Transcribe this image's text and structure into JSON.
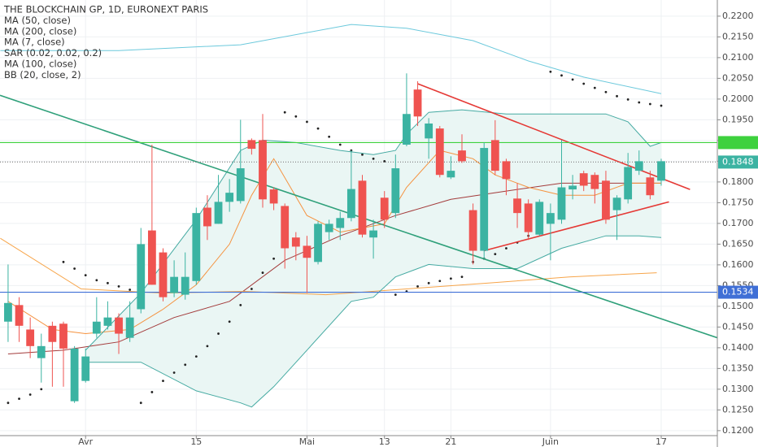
{
  "chart_data": {
    "type": "candlestick",
    "title": "THE BLOCKCHAIN GP, 1D, EURONEXT PARIS",
    "categories": [
      null,
      null,
      null,
      null,
      null,
      null,
      null,
      "Avr",
      null,
      null,
      null,
      null,
      null,
      null,
      null,
      null,
      null,
      "15",
      null,
      null,
      null,
      null,
      null,
      null,
      null,
      null,
      null,
      "Mai",
      null,
      null,
      null,
      null,
      null,
      null,
      "13",
      null,
      null,
      null,
      null,
      null,
      "21",
      null,
      null,
      null,
      null,
      null,
      null,
      null,
      null,
      "Juin",
      null,
      null,
      null,
      null,
      null,
      null,
      null,
      null,
      null,
      "17"
    ],
    "open": [
      0.1463,
      0.1503,
      0.1444,
      0.1375,
      0.1453,
      0.1458,
      0.1271,
      0.132,
      0.1434,
      0.1453,
      0.1473,
      0.1424,
      0.1493,
      0.1683,
      0.163,
      0.1532,
      0.1528,
      0.1561,
      0.1738,
      0.1699,
      0.1752,
      0.1754,
      0.1901,
      0.1901,
      0.1782,
      0.1742,
      0.1666,
      0.1646,
      0.1607,
      0.1679,
      0.1689,
      0.1713,
      0.1803,
      0.1666,
      0.1762,
      0.1725,
      0.189,
      0.2023,
      0.1905,
      0.1929,
      0.1811,
      0.1876,
      0.1732,
      0.1634,
      0.1901,
      0.185,
      0.176,
      0.1748,
      0.1673,
      0.1699,
      0.1709,
      0.1782,
      0.1821,
      0.1817,
      0.1803,
      0.1732,
      0.1758,
      0.1827,
      0.1811,
      0.1803
    ],
    "high": [
      0.1601,
      0.1522,
      0.1473,
      0.1434,
      0.1463,
      0.1463,
      0.1404,
      0.1398,
      0.1522,
      0.1512,
      0.1483,
      0.1512,
      0.1689,
      0.189,
      0.164,
      0.1611,
      0.163,
      0.1738,
      0.1768,
      0.1817,
      0.1807,
      0.195,
      0.1905,
      0.1964,
      0.1787,
      0.1748,
      0.1679,
      0.167,
      0.1705,
      0.1709,
      0.1728,
      0.1876,
      0.1817,
      0.1709,
      0.1778,
      0.1866,
      0.2062,
      0.2043,
      0.1954,
      0.1935,
      0.1862,
      0.1915,
      0.1748,
      0.1895,
      0.1949,
      0.1856,
      0.1797,
      0.1758,
      0.1758,
      0.1748,
      0.1901,
      0.1817,
      0.1827,
      0.1823,
      0.1827,
      0.1768,
      0.187,
      0.1876,
      0.1827,
      0.1856
    ],
    "low": [
      0.1414,
      0.1414,
      0.1375,
      0.1316,
      0.1306,
      0.1306,
      0.1267,
      0.1316,
      0.1424,
      0.1444,
      0.1385,
      0.1414,
      0.1483,
      0.1552,
      0.1512,
      0.1522,
      0.1516,
      0.1552,
      0.166,
      0.1699,
      0.1728,
      0.1748,
      0.1866,
      0.1738,
      0.1732,
      0.1591,
      0.1611,
      0.1532,
      0.1601,
      0.166,
      0.166,
      0.1705,
      0.1666,
      0.1615,
      0.1689,
      0.1713,
      0.1886,
      0.1935,
      0.1856,
      0.1811,
      0.1807,
      0.1846,
      0.1601,
      0.1615,
      0.1817,
      0.1768,
      0.1689,
      0.166,
      0.167,
      0.1611,
      0.1699,
      0.1758,
      0.1778,
      0.1748,
      0.1699,
      0.166,
      0.1748,
      0.1817,
      0.1758,
      0.1791
    ],
    "close": [
      0.1508,
      0.1453,
      0.1404,
      0.1404,
      0.1414,
      0.1398,
      0.1398,
      0.1379,
      0.1463,
      0.1473,
      0.1434,
      0.1473,
      0.165,
      0.1552,
      0.1522,
      0.1571,
      0.1571,
      0.1725,
      0.1693,
      0.1752,
      0.1774,
      0.1833,
      0.188,
      0.1758,
      0.1748,
      0.164,
      0.1644,
      0.1617,
      0.1699,
      0.1699,
      0.1713,
      0.1783,
      0.1673,
      0.1683,
      0.1709,
      0.1833,
      0.1964,
      0.1958,
      0.1941,
      0.1817,
      0.1827,
      0.185,
      0.1634,
      0.1882,
      0.1827,
      0.1807,
      0.1725,
      0.1679,
      0.1752,
      0.1725,
      0.1787,
      0.1791,
      0.1791,
      0.1783,
      0.1709,
      0.1762,
      0.1836,
      0.185,
      0.1768,
      0.185
    ],
    "up_color": "#3bb3a2",
    "down_color": "#ef5350",
    "xlim": [
      -0.73,
      64.07
    ],
    "ylim": [
      0.1188,
      0.2239
    ],
    "yticks": [
      {
        "value": 0.12,
        "label": "0.1200"
      },
      {
        "value": 0.125,
        "label": "0.1250"
      },
      {
        "value": 0.13,
        "label": "0.1300"
      },
      {
        "value": 0.135,
        "label": "0.1350"
      },
      {
        "value": 0.14,
        "label": "0.1400"
      },
      {
        "value": 0.145,
        "label": "0.1450"
      },
      {
        "value": 0.15,
        "label": "0.1500"
      },
      {
        "value": 0.155,
        "label": "0.1550"
      },
      {
        "value": 0.16,
        "label": "0.1600"
      },
      {
        "value": 0.165,
        "label": "0.1650"
      },
      {
        "value": 0.17,
        "label": "0.1700"
      },
      {
        "value": 0.175,
        "label": "0.1750"
      },
      {
        "value": 0.18,
        "label": "0.1800"
      },
      {
        "value": 0.185,
        "label": "0.1850"
      },
      {
        "value": 0.19,
        "label": "0.1900"
      },
      {
        "value": 0.195,
        "label": "0.1950"
      },
      {
        "value": 0.2,
        "label": "0.2000"
      },
      {
        "value": 0.205,
        "label": "0.2050"
      },
      {
        "value": 0.21,
        "label": "0.2100"
      },
      {
        "value": 0.215,
        "label": "0.2150"
      },
      {
        "value": 0.22,
        "label": "0.2200"
      }
    ],
    "grid": true,
    "indicators": [
      {
        "name": "MA (50, close)",
        "color": "#a33b3b",
        "x": [
          0,
          5,
          10,
          15,
          20,
          25,
          30,
          35,
          40,
          45,
          50,
          55,
          59
        ],
        "values": [
          0.1385,
          0.1394,
          0.1414,
          0.1473,
          0.1512,
          0.1611,
          0.167,
          0.1719,
          0.1758,
          0.1778,
          0.1797,
          0.1797,
          0.1797
        ]
      },
      {
        "name": "MA (200, close)",
        "color": "#6cc9dc",
        "x": [
          -0.7,
          10,
          21,
          31,
          36,
          42,
          47,
          52,
          59
        ],
        "values": [
          0.2117,
          0.2117,
          0.2131,
          0.218,
          0.2171,
          0.2141,
          0.2092,
          0.2053,
          0.2013
        ]
      },
      {
        "name": "MA (7, close)",
        "color": "#f5923e",
        "x": [
          0,
          4,
          7,
          11,
          14,
          17,
          20,
          22,
          24,
          27,
          30,
          34,
          36,
          39,
          42,
          44,
          47,
          50,
          53,
          56,
          59
        ],
        "values": [
          0.1512,
          0.1444,
          0.1434,
          0.1444,
          0.1493,
          0.1552,
          0.165,
          0.1768,
          0.1856,
          0.1719,
          0.1679,
          0.1699,
          0.1787,
          0.1876,
          0.1856,
          0.1817,
          0.1787,
          0.1768,
          0.1768,
          0.1797,
          0.1797
        ]
      },
      {
        "name": "SAR (0.02, 0.02, 0.2)",
        "color": "#222222",
        "values": [
          0.1267,
          0.1277,
          0.1287,
          0.13,
          null,
          0.1607,
          0.1591,
          0.1575,
          0.1563,
          0.1556,
          0.1548,
          0.154,
          0.1267,
          0.1293,
          0.132,
          0.134,
          0.1359,
          0.1379,
          0.1404,
          0.1434,
          0.1463,
          0.1503,
          0.1542,
          0.1581,
          0.1615,
          0.1968,
          0.1958,
          0.1945,
          0.1929,
          0.1909,
          0.189,
          0.1876,
          0.1866,
          0.1856,
          0.185,
          0.1528,
          0.1536,
          0.1548,
          0.1556,
          0.1561,
          0.1567,
          0.1571,
          0.1607,
          0.1615,
          0.1626,
          0.164,
          0.1654,
          0.167,
          0.1685,
          0.2066,
          0.2057,
          0.2047,
          0.2037,
          0.2027,
          0.2017,
          0.2007,
          0.1999,
          0.1992,
          0.1988,
          0.1984
        ]
      },
      {
        "name": "MA (100, close)",
        "color": "#f7a54a",
        "x": [
          -0.7,
          6.6,
          14,
          21.3,
          28.7,
          36,
          43.4,
          50.7,
          58.6
        ],
        "values": [
          0.1664,
          0.1542,
          0.1532,
          0.1536,
          0.1528,
          0.1542,
          0.1556,
          0.1571,
          0.1581
        ]
      },
      {
        "name": "BB (20, close, 2)",
        "color": "#45aaa2",
        "fill": "#eaf6f4",
        "upper": {
          "x": [
            7,
            12,
            17,
            21,
            23,
            26,
            30,
            33,
            35,
            36,
            38,
            41,
            45,
            50,
            54,
            56,
            58,
            59
          ],
          "values": [
            0.1394,
            0.1532,
            0.1709,
            0.1876,
            0.1901,
            0.1895,
            0.1876,
            0.1866,
            0.1876,
            0.1915,
            0.1968,
            0.1974,
            0.1964,
            0.1964,
            0.1964,
            0.1945,
            0.1886,
            0.1895
          ]
        },
        "lower": {
          "x": [
            7,
            12,
            17,
            21,
            22,
            24,
            27,
            31,
            33,
            35,
            38,
            42,
            46,
            50,
            54,
            57,
            59
          ],
          "values": [
            0.1365,
            0.1365,
            0.1296,
            0.1267,
            0.1257,
            0.1306,
            0.1394,
            0.1512,
            0.1522,
            0.1571,
            0.1601,
            0.1591,
            0.1591,
            0.164,
            0.167,
            0.167,
            0.1666
          ]
        }
      }
    ],
    "drawings": [
      {
        "color": "#e53935",
        "x": [
          37,
          61.6
        ],
        "values": [
          0.2037,
          0.1782
        ]
      },
      {
        "color": "#e53935",
        "x": [
          43,
          59.7
        ],
        "values": [
          0.1634,
          0.1752
        ]
      },
      {
        "color": "#2fa07a",
        "x": [
          -0.73,
          64.07
        ],
        "values": [
          0.2009,
          0.1424
        ]
      }
    ],
    "hlines": [
      {
        "value": 0.1895,
        "color": "#3ed13e"
      },
      {
        "value": 0.1534,
        "label": "0.1534",
        "color": "#3f6fd6"
      },
      {
        "value": 0.1848,
        "label": "0.1848",
        "color": "#3bb3a2",
        "dashed": true
      }
    ]
  }
}
